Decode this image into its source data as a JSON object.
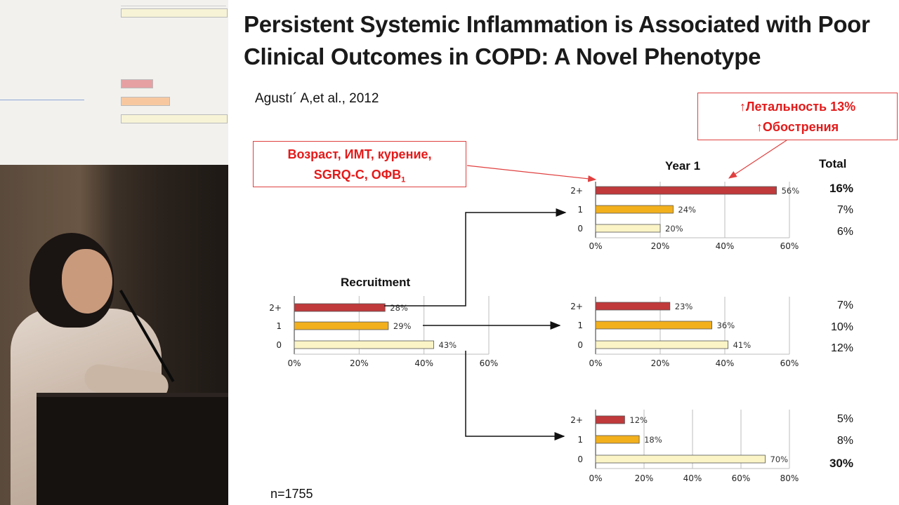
{
  "slide": {
    "title": "Persistent Systemic Inflammation is Associated with Poor Clinical Outcomes in COPD: A Novel Phenotype",
    "citation": "Agustı´ A,et al., 2012",
    "callout_left_line1": "Возраст, ИМТ, курение,",
    "callout_left_line2": "SGRQ-C, ОФВ",
    "callout_left_sub": "1",
    "callout_right_line1": "↑Летальность 13%",
    "callout_right_line2": "↑Обострения",
    "year1_label": "Year 1",
    "recruitment_label": "Recruitment",
    "total_header": "Total",
    "footer": "n=1755",
    "colors": {
      "bar_2plus": "#c0393b",
      "bar_1": "#f2b01d",
      "bar_0": "#fbf4c6",
      "callout": "#e41a1a"
    }
  },
  "chart_data": [
    {
      "type": "bar",
      "name": "recruitment",
      "orientation": "horizontal",
      "categories": [
        "2+",
        "1",
        "0"
      ],
      "values": [
        28,
        29,
        43
      ],
      "value_labels": [
        "28%",
        "29%",
        "43%"
      ],
      "xlim": [
        0,
        60
      ],
      "ticks": [
        "0%",
        "20%",
        "40%",
        "60%"
      ]
    },
    {
      "type": "bar",
      "name": "year1_from_2plus",
      "orientation": "horizontal",
      "categories": [
        "2+",
        "1",
        "0"
      ],
      "values": [
        56,
        24,
        20
      ],
      "value_labels": [
        "56%",
        "24%",
        "20%"
      ],
      "xlim": [
        0,
        60
      ],
      "ticks": [
        "0%",
        "20%",
        "40%",
        "60%"
      ],
      "totals": [
        "16%",
        "7%",
        "6%"
      ]
    },
    {
      "type": "bar",
      "name": "year1_from_1",
      "orientation": "horizontal",
      "categories": [
        "2+",
        "1",
        "0"
      ],
      "values": [
        23,
        36,
        41
      ],
      "value_labels": [
        "23%",
        "36%",
        "41%"
      ],
      "xlim": [
        0,
        60
      ],
      "ticks": [
        "0%",
        "20%",
        "40%",
        "60%"
      ],
      "totals": [
        "7%",
        "10%",
        "12%"
      ]
    },
    {
      "type": "bar",
      "name": "year1_from_0",
      "orientation": "horizontal",
      "categories": [
        "2+",
        "1",
        "0"
      ],
      "values": [
        12,
        18,
        70
      ],
      "value_labels": [
        "12%",
        "18%",
        "70%"
      ],
      "xlim": [
        0,
        80
      ],
      "ticks": [
        "0%",
        "20%",
        "40%",
        "60%",
        "80%"
      ],
      "totals": [
        "5%",
        "8%",
        "30%"
      ]
    }
  ]
}
